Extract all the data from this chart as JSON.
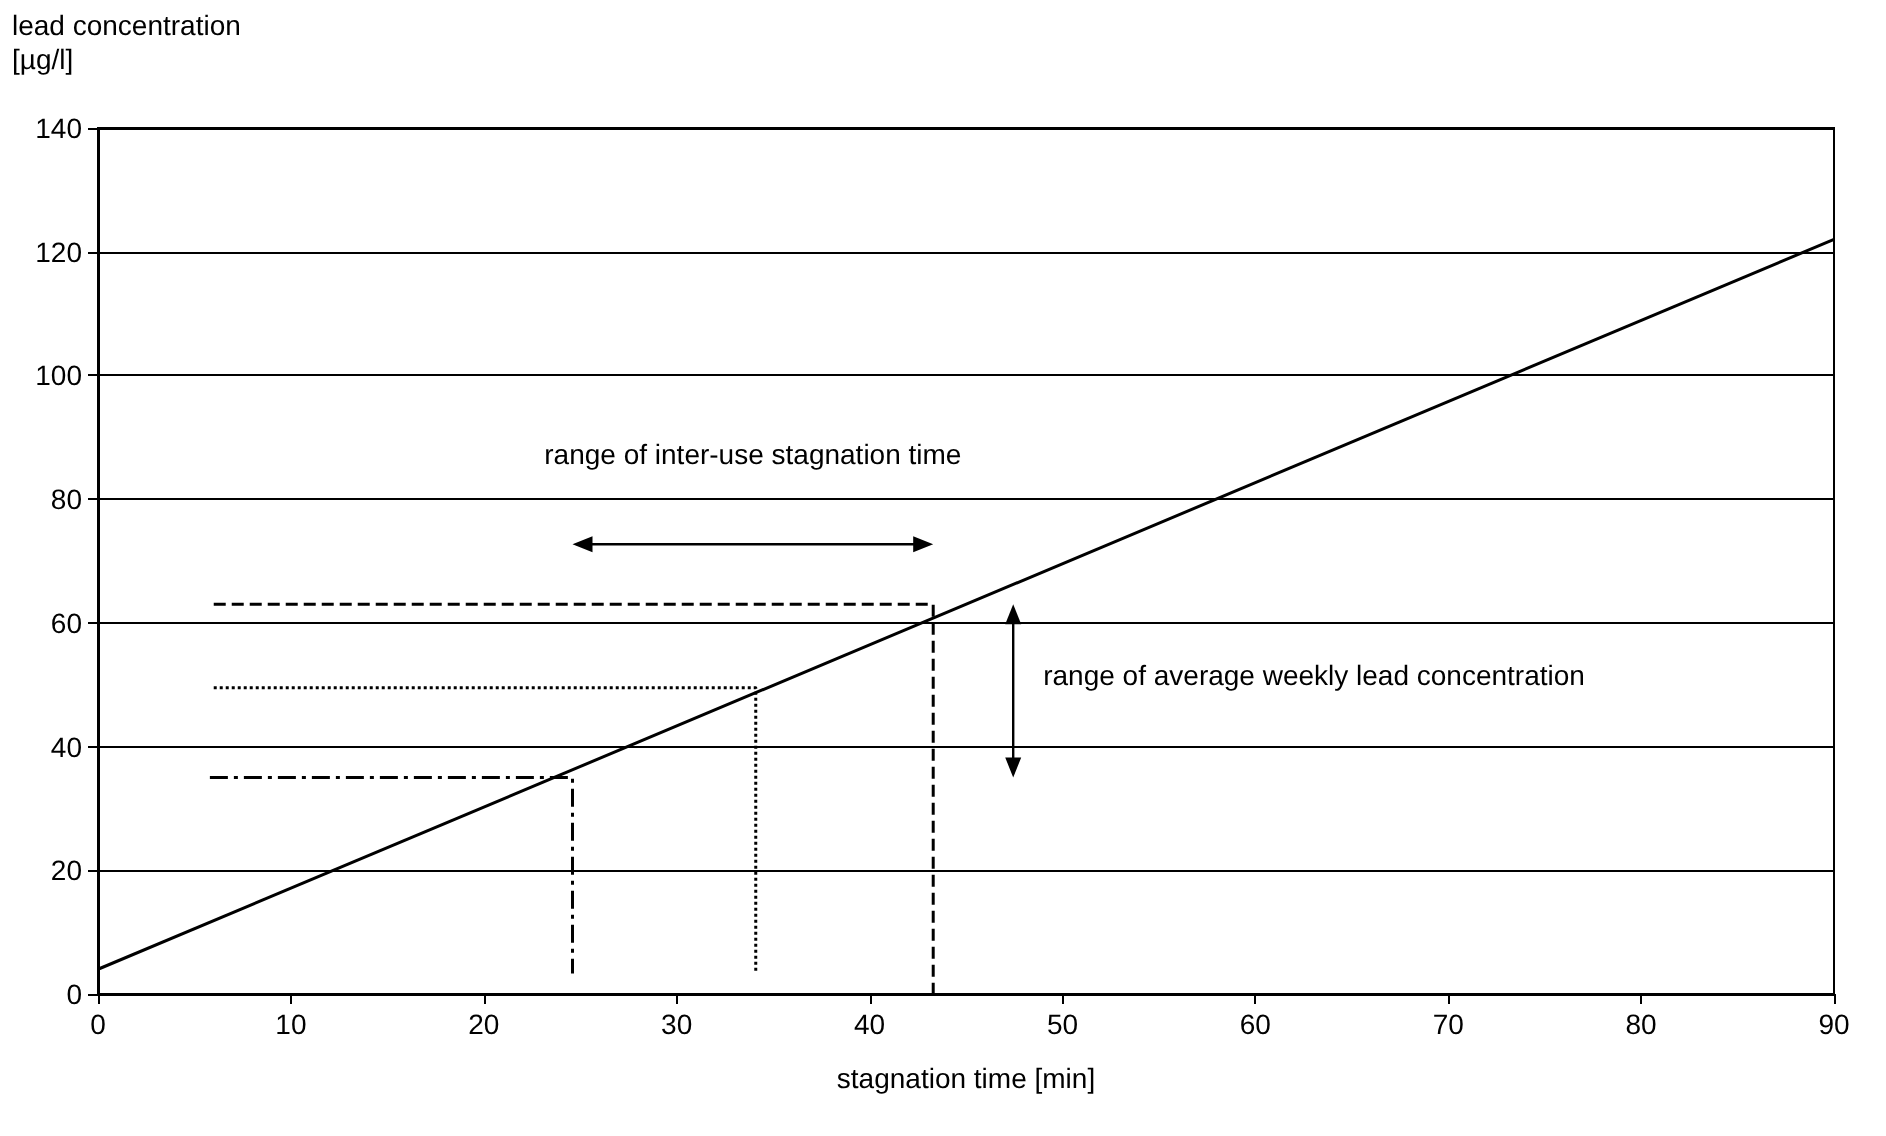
{
  "chart_data": {
    "type": "line",
    "xlabel": "stagnation time [min]",
    "ylabel": "lead concentration [µg/l]",
    "annotations": [
      "range of inter-use stagnation time",
      "range of average weekly lead concentration"
    ],
    "series": [
      {
        "color": "#000000",
        "x": [
          0,
          90
        ],
        "values": [
          4,
          122
        ],
        "line_style": "solid"
      },
      {
        "color": "#000000",
        "x": [
          6,
          43.3,
          43.3
        ],
        "values": [
          63,
          63,
          0
        ],
        "line_style": "dashed"
      },
      {
        "color": "#000000",
        "x": [
          6,
          34.1,
          34.1
        ],
        "values": [
          49.5,
          49.5,
          3.3
        ],
        "line_style": "dotted"
      },
      {
        "color": "#000000",
        "x": [
          5.8,
          24.6,
          24.6
        ],
        "values": [
          35,
          35,
          3.3
        ],
        "line_style": "dashdot"
      }
    ],
    "xlim": [
      0,
      90
    ],
    "xticks": [
      0,
      10,
      20,
      30,
      40,
      50,
      60,
      70,
      80,
      90
    ],
    "ylim": [
      0,
      140
    ],
    "yticks": [
      0,
      20,
      40,
      60,
      80,
      100,
      120,
      140
    ],
    "grid": "y",
    "marker": "none"
  }
}
